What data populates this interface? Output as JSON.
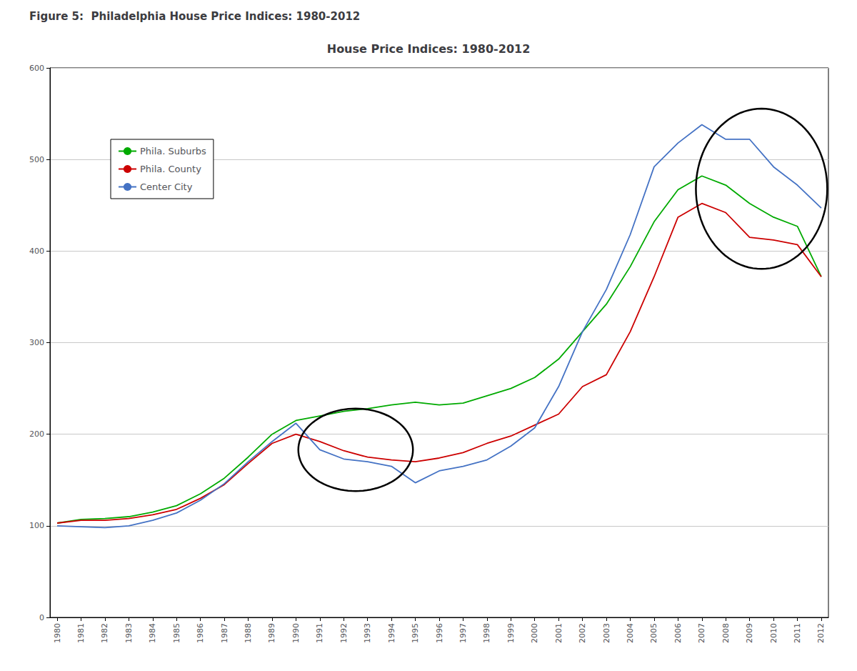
{
  "chart_data": {
    "type": "line",
    "figure_title": "Figure 5:  Philadelphia House Price Indices: 1980-2012",
    "title": "House Price Indices: 1980-2012",
    "x": [
      1980,
      1981,
      1982,
      1983,
      1984,
      1985,
      1986,
      1987,
      1988,
      1989,
      1990,
      1991,
      1992,
      1993,
      1994,
      1995,
      1996,
      1997,
      1998,
      1999,
      2000,
      2001,
      2002,
      2003,
      2004,
      2005,
      2006,
      2007,
      2008,
      2009,
      2010,
      2011,
      2012
    ],
    "series": [
      {
        "name": "Phila. Suburbs",
        "color": "#00aa00",
        "values": [
          103,
          107,
          108,
          110,
          115,
          122,
          135,
          152,
          175,
          200,
          215,
          220,
          225,
          228,
          232,
          235,
          232,
          234,
          242,
          250,
          262,
          282,
          312,
          342,
          383,
          432,
          467,
          482,
          472,
          452,
          437,
          427,
          372
        ]
      },
      {
        "name": "Phila. County",
        "color": "#cc0000",
        "values": [
          103,
          106,
          106,
          108,
          112,
          118,
          130,
          145,
          168,
          190,
          200,
          192,
          182,
          175,
          172,
          170,
          174,
          180,
          190,
          198,
          210,
          222,
          252,
          265,
          312,
          372,
          437,
          452,
          442,
          415,
          412,
          407,
          372
        ]
      },
      {
        "name": "Center City",
        "color": "#4472c4",
        "values": [
          100,
          99,
          98,
          100,
          106,
          114,
          128,
          146,
          170,
          192,
          212,
          183,
          173,
          170,
          165,
          147,
          160,
          165,
          172,
          187,
          207,
          252,
          312,
          358,
          418,
          492,
          518,
          538,
          522,
          522,
          492,
          472,
          447
        ]
      }
    ],
    "xlim": [
      1979.7,
      2012.3
    ],
    "xticks": [
      1980,
      1981,
      1982,
      1983,
      1984,
      1985,
      1986,
      1987,
      1988,
      1989,
      1990,
      1991,
      1992,
      1993,
      1994,
      1995,
      1996,
      1997,
      1998,
      1999,
      2000,
      2001,
      2002,
      2003,
      2004,
      2005,
      2006,
      2007,
      2008,
      2009,
      2010,
      2011,
      2012
    ],
    "ylim": [
      0,
      600
    ],
    "yticks": [
      0,
      100,
      200,
      300,
      400,
      500,
      600
    ],
    "grid": true,
    "legend": "upper left",
    "ellipses": [
      {
        "cx": 1992.5,
        "cy": 183,
        "width": 4.8,
        "height": 90
      },
      {
        "cx": 2009.5,
        "cy": 468,
        "width": 5.5,
        "height": 175
      }
    ]
  }
}
